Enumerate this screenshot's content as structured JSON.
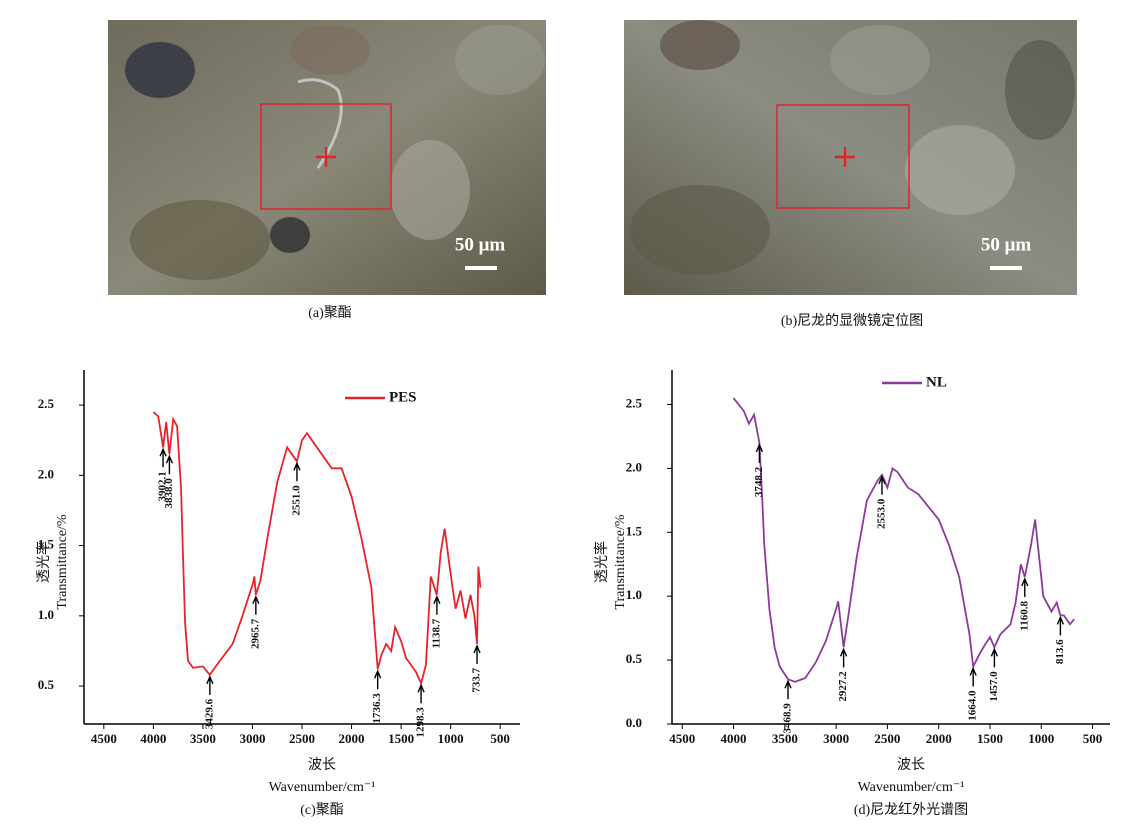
{
  "images": [
    {
      "scale_bar": "50 μm",
      "caption": "(a)聚酯"
    },
    {
      "scale_bar": "50 μm",
      "caption": "(b)尼龙的显微镜定位图"
    }
  ],
  "chart_data": [
    {
      "type": "line",
      "caption": "(c)聚酯",
      "xlabel_cn": "波长",
      "xlabel": "Wavenumber/cm⁻¹",
      "ylabel_cn": "透光率",
      "ylabel": "Transmittance/%",
      "xlim": [
        4700,
        300
      ],
      "xticks": [
        4500,
        4000,
        3500,
        3000,
        2500,
        2000,
        1500,
        1000,
        500
      ],
      "ylim": [
        0.23,
        2.75
      ],
      "yticks": [
        {
          "value": 0.5,
          "label": "0.5"
        },
        {
          "value": 1.0,
          "label": "1.0"
        },
        {
          "value": 1.5,
          "label": "1.5"
        },
        {
          "value": 2.0,
          "label": "2.0"
        },
        {
          "value": 2.5,
          "label": "2.5"
        }
      ],
      "x": [
        4000,
        3950,
        3902,
        3870,
        3838,
        3800,
        3760,
        3720,
        3700,
        3680,
        3650,
        3600,
        3500,
        3430,
        3350,
        3200,
        3100,
        3000,
        2980,
        2966,
        2920,
        2850,
        2750,
        2650,
        2551,
        2500,
        2450,
        2350,
        2200,
        2100,
        2000,
        1900,
        1800,
        1750,
        1736,
        1700,
        1650,
        1600,
        1560,
        1500,
        1450,
        1400,
        1350,
        1298,
        1250,
        1200,
        1140,
        1100,
        1060,
        1020,
        980,
        950,
        900,
        850,
        800,
        760,
        734,
        720,
        700
      ],
      "series": [
        {
          "name": "PES",
          "color": "#e8232a",
          "values": [
            2.45,
            2.42,
            2.2,
            2.38,
            2.15,
            2.4,
            2.35,
            1.9,
            1.4,
            0.95,
            0.68,
            0.63,
            0.64,
            0.58,
            0.66,
            0.8,
            1.0,
            1.22,
            1.28,
            1.15,
            1.25,
            1.55,
            1.95,
            2.2,
            2.1,
            2.25,
            2.3,
            2.2,
            2.05,
            2.05,
            1.85,
            1.55,
            1.2,
            0.75,
            0.62,
            0.72,
            0.8,
            0.75,
            0.92,
            0.82,
            0.7,
            0.65,
            0.6,
            0.52,
            0.65,
            1.28,
            1.15,
            1.45,
            1.62,
            1.4,
            1.2,
            1.05,
            1.18,
            0.98,
            1.15,
            1.0,
            0.8,
            1.35,
            1.2
          ]
        }
      ],
      "annotations": [
        {
          "x": 3902.1,
          "y": 2.2,
          "label": "3902.1"
        },
        {
          "x": 3838.0,
          "y": 2.15,
          "label": "3838.0"
        },
        {
          "x": 3429.6,
          "y": 0.58,
          "label": "3429.6"
        },
        {
          "x": 2965.7,
          "y": 1.15,
          "label": "2965.7"
        },
        {
          "x": 2551.0,
          "y": 2.1,
          "label": "2551.0"
        },
        {
          "x": 1736.3,
          "y": 0.62,
          "label": "1736.3"
        },
        {
          "x": 1298.3,
          "y": 0.52,
          "label": "1298.3"
        },
        {
          "x": 1138.7,
          "y": 1.15,
          "label": "1138.7"
        },
        {
          "x": 733.7,
          "y": 0.8,
          "label": "733.7"
        }
      ]
    },
    {
      "type": "line",
      "caption": "(d)尼龙红外光谱图",
      "xlabel_cn": "波长",
      "xlabel": "Wavenumber/cm⁻¹",
      "ylabel_cn": "透光率",
      "ylabel": "Transmittance/%",
      "xlim": [
        4600,
        330
      ],
      "xticks": [
        4500,
        4000,
        3500,
        3000,
        2500,
        2000,
        1500,
        1000,
        500
      ],
      "ylim": [
        0,
        2.77
      ],
      "yticks": [
        {
          "value": 0,
          "label": "0.0"
        },
        {
          "value": 0.5,
          "label": "0.5"
        },
        {
          "value": 1.0,
          "label": "1.0"
        },
        {
          "value": 1.5,
          "label": "1.5"
        },
        {
          "value": 2.0,
          "label": "2.0"
        },
        {
          "value": 2.5,
          "label": "2.5"
        }
      ],
      "x": [
        4000,
        3900,
        3850,
        3800,
        3748,
        3720,
        3700,
        3650,
        3600,
        3550,
        3469,
        3400,
        3300,
        3200,
        3100,
        3000,
        2980,
        2927,
        2880,
        2800,
        2700,
        2600,
        2553,
        2500,
        2450,
        2400,
        2300,
        2200,
        2100,
        2000,
        1900,
        1800,
        1700,
        1664,
        1600,
        1550,
        1500,
        1457,
        1400,
        1300,
        1250,
        1200,
        1161,
        1100,
        1060,
        1020,
        980,
        900,
        850,
        814,
        780,
        720,
        680
      ],
      "series": [
        {
          "name": "NL",
          "color": "#8e3a9d",
          "values": [
            2.55,
            2.45,
            2.35,
            2.42,
            2.2,
            1.75,
            1.4,
            0.9,
            0.6,
            0.45,
            0.35,
            0.33,
            0.36,
            0.48,
            0.65,
            0.9,
            0.96,
            0.6,
            0.85,
            1.3,
            1.75,
            1.9,
            1.95,
            1.85,
            2.0,
            1.97,
            1.85,
            1.8,
            1.7,
            1.6,
            1.4,
            1.15,
            0.7,
            0.45,
            0.55,
            0.62,
            0.68,
            0.6,
            0.7,
            0.78,
            0.95,
            1.25,
            1.15,
            1.4,
            1.6,
            1.3,
            1.0,
            0.88,
            0.95,
            0.85,
            0.85,
            0.78,
            0.82
          ]
        }
      ],
      "annotations": [
        {
          "x": 3748.2,
          "y": 2.2,
          "label": "3748.2"
        },
        {
          "x": 3468.9,
          "y": 0.35,
          "label": "3468.9"
        },
        {
          "x": 2927.2,
          "y": 0.6,
          "label": "2927.2"
        },
        {
          "x": 2553.0,
          "y": 1.95,
          "label": "2553.0"
        },
        {
          "x": 1664.0,
          "y": 0.45,
          "label": "1664.0"
        },
        {
          "x": 1457.0,
          "y": 0.6,
          "label": "1457.0"
        },
        {
          "x": 1160.8,
          "y": 1.15,
          "label": "1160.8"
        },
        {
          "x": 813.6,
          "y": 0.85,
          "label": "813.6"
        }
      ]
    }
  ]
}
